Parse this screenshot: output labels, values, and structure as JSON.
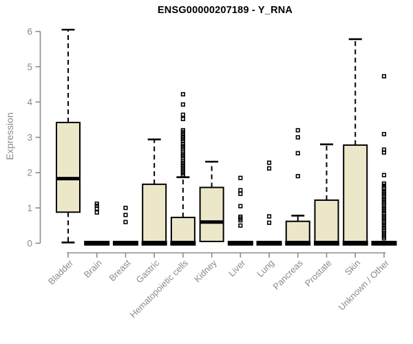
{
  "chart_data": {
    "type": "boxplot",
    "title": "ENSG00000207189 - Y_RNA",
    "ylabel": "Expression",
    "xlabel": "",
    "yticks": [
      0,
      1,
      2,
      3,
      4,
      5,
      6
    ],
    "ylim": [
      0,
      6.2
    ],
    "grid": false,
    "legend": "none",
    "colors": {
      "box_fill": "#ECE7C9",
      "box_border": "#000000",
      "median": "#000000",
      "whisker": "#000000",
      "outlier": "#000000",
      "axis": "#8a8a8a",
      "title": "#000000"
    },
    "categories": [
      "Bladder",
      "Brain",
      "Breast",
      "Gastric",
      "Hematopoietic cells",
      "Kidney",
      "Liver",
      "Lung",
      "Pancreas",
      "Prostate",
      "Skin",
      "Unknown / Other"
    ],
    "boxes": [
      {
        "name": "Bladder",
        "min": 0.02,
        "q1": 0.88,
        "median": 1.83,
        "q3": 3.42,
        "max": 6.05,
        "outliers": []
      },
      {
        "name": "Brain",
        "min": 0,
        "q1": 0,
        "median": 0,
        "q3": 0,
        "max": 0,
        "outliers": [
          0.87,
          0.98,
          1.06,
          1.12
        ]
      },
      {
        "name": "Breast",
        "min": 0,
        "q1": 0,
        "median": 0,
        "q3": 0,
        "max": 0,
        "outliers": [
          0.6,
          0.8,
          1.0
        ]
      },
      {
        "name": "Gastric",
        "min": 0,
        "q1": 0,
        "median": 0.02,
        "q3": 1.67,
        "max": 2.94,
        "outliers": []
      },
      {
        "name": "Hematopoietic cells",
        "min": 0,
        "q1": 0,
        "median": 0.02,
        "q3": 0.73,
        "max": 1.87,
        "outliers": [
          1.93,
          1.98,
          2.03,
          2.08,
          2.13,
          2.18,
          2.23,
          2.28,
          2.33,
          2.42,
          2.47,
          2.52,
          2.57,
          2.66,
          2.71,
          2.76,
          2.81,
          2.9,
          2.95,
          3.0,
          3.05,
          3.1,
          3.15,
          3.2,
          3.52,
          3.64,
          3.93,
          4.22
        ]
      },
      {
        "name": "Kidney",
        "min": 0.05,
        "q1": 0.05,
        "median": 0.6,
        "q3": 1.58,
        "max": 2.31,
        "outliers": []
      },
      {
        "name": "Liver",
        "min": 0,
        "q1": 0,
        "median": 0,
        "q3": 0,
        "max": 0,
        "outliers": [
          0.5,
          0.65,
          0.7,
          0.75,
          1.05,
          1.4,
          1.5,
          1.85
        ]
      },
      {
        "name": "Lung",
        "min": 0,
        "q1": 0,
        "median": 0,
        "q3": 0,
        "max": 0,
        "outliers": [
          0.58,
          0.76,
          2.12,
          2.28
        ]
      },
      {
        "name": "Pancreas",
        "min": 0,
        "q1": 0,
        "median": 0.02,
        "q3": 0.62,
        "max": 0.78,
        "outliers": [
          1.9,
          2.55,
          3.0,
          3.2
        ]
      },
      {
        "name": "Prostate",
        "min": 0,
        "q1": 0,
        "median": 0.02,
        "q3": 1.22,
        "max": 2.8,
        "outliers": []
      },
      {
        "name": "Skin",
        "min": 0,
        "q1": 0,
        "median": 0.02,
        "q3": 2.78,
        "max": 5.78,
        "outliers": []
      },
      {
        "name": "Unknown / Other",
        "min": 0,
        "q1": 0,
        "median": 0,
        "q3": 0,
        "max": 0,
        "outliers": [
          0.14,
          0.19,
          0.24,
          0.29,
          0.34,
          0.38,
          0.43,
          0.48,
          0.53,
          0.58,
          0.62,
          0.67,
          0.72,
          0.77,
          0.82,
          0.86,
          0.91,
          0.96,
          1.01,
          1.06,
          1.1,
          1.15,
          1.2,
          1.25,
          1.3,
          1.34,
          1.39,
          1.44,
          1.49,
          1.54,
          1.58,
          1.63,
          1.69,
          1.93,
          2.57,
          2.65,
          3.09,
          4.73
        ]
      }
    ]
  }
}
